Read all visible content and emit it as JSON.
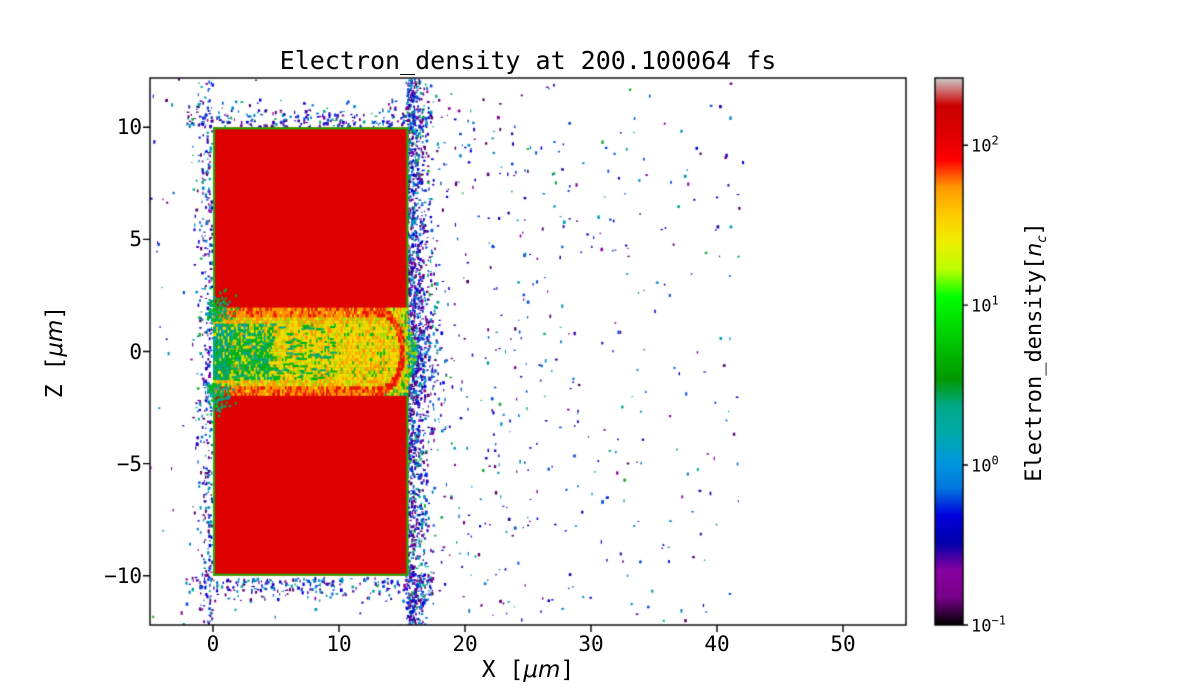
{
  "figure": {
    "background": "#ffffff",
    "frame_color": "#000000"
  },
  "labels": {
    "x_prefix": "X [",
    "x_math": "μm",
    "x_suffix": "]",
    "y_prefix": "Z [",
    "y_math": "μm",
    "y_suffix": "]",
    "cb_prefix": "Electron_density[",
    "cb_math": "n",
    "cb_sub": "c",
    "cb_suffix": "]"
  },
  "chart_data": {
    "type": "heatmap",
    "title": "Electron_density at 200.100064 fs",
    "time_fs": 200.100064,
    "xlabel": "X [μm]",
    "ylabel": "Z [μm]",
    "xlim": [
      -5,
      55
    ],
    "ylim": [
      -12.2,
      12.2
    ],
    "xticks": [
      0,
      10,
      20,
      30,
      40,
      50
    ],
    "yticks": [
      -10,
      -5,
      0,
      5,
      10
    ],
    "grid": false,
    "scatter_seed": 42,
    "colorbar": {
      "label": "Electron_density[nc]",
      "scale": "log",
      "units": "critical density nc",
      "tick_exponents": [
        2,
        1,
        0,
        -1
      ],
      "vmin_exponent": -1,
      "vmax_exponent": 2.42,
      "colormap_name": "nipy_spectral",
      "colormap_stops": [
        [
          0.0,
          "#000000"
        ],
        [
          0.05,
          "#770088"
        ],
        [
          0.1,
          "#8800a1"
        ],
        [
          0.15,
          "#0000aa"
        ],
        [
          0.2,
          "#0000dd"
        ],
        [
          0.25,
          "#0077dd"
        ],
        [
          0.3,
          "#0099dd"
        ],
        [
          0.35,
          "#00aaaa"
        ],
        [
          0.4,
          "#00aa88"
        ],
        [
          0.45,
          "#009900"
        ],
        [
          0.5,
          "#00bb00"
        ],
        [
          0.55,
          "#00dd00"
        ],
        [
          0.6,
          "#00ff00"
        ],
        [
          0.65,
          "#bbff00"
        ],
        [
          0.7,
          "#eeee00"
        ],
        [
          0.75,
          "#ffcc00"
        ],
        [
          0.8,
          "#ff9900"
        ],
        [
          0.85,
          "#ff0000"
        ],
        [
          0.9,
          "#dd0000"
        ],
        [
          0.95,
          "#cc0000"
        ],
        [
          1.0,
          "#cccccc"
        ]
      ]
    },
    "palette": {
      "target_red": "#dc0000",
      "edge_green": "#1fae00",
      "channel": {
        "yellow": "#f0e000",
        "yellow2": "#ffd000",
        "ygreen": "#a8dc00",
        "orange": "#ff9900",
        "orange2": "#ff6600",
        "red": "#ea1600",
        "green": "#00b41e",
        "teal": "#00a878",
        "cyan": "#00a2c8"
      },
      "specks": [
        "#5c0070",
        "#8800a1",
        "#2a00b4",
        "#0000dd",
        "#0050dd",
        "#0084cc",
        "#009ab4",
        "#00a88e",
        "#1eaa3c"
      ]
    },
    "features": {
      "target_block": {
        "x": [
          0,
          15.5
        ],
        "z": [
          -10,
          10
        ],
        "density_nc": 200,
        "description": "solid overdense target slab, uniform red (~2x10^2 nc), thin green low-density skin on edges"
      },
      "channel": {
        "x": [
          0,
          15.45
        ],
        "z": [
          -1.9,
          1.9
        ],
        "density_range_nc": [
          3,
          60
        ],
        "description": "laser-drilled channel filled with turbulent yellow/orange plasma (~20-50 nc), green/teal filaments in the left half, orange/red rims at |z|~1.5-1.9, rounded red-orange front arc near x~13-15 and small bulge past x=15.5"
      },
      "halo": {
        "x": [
          -5,
          42
        ],
        "z": [
          -12.2,
          12.2
        ],
        "density_range_nc": [
          0.1,
          3
        ],
        "description": "sparse blue/purple/cyan electron specks blown off the target; densest vertical band just outside the right face (x~15-19), bands hugging left face and top/bottom faces, sparse tail thinning out to x~40"
      }
    }
  }
}
